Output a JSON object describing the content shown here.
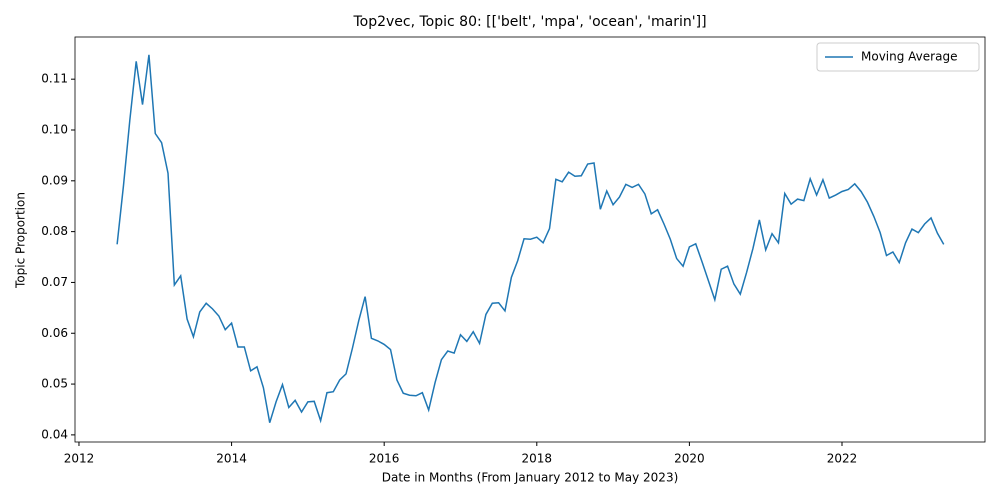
{
  "chart_data": {
    "type": "line",
    "title": "Top2vec, Topic 80: [['belt', 'mpa', 'ocean', 'marin']]",
    "xlabel": "Date in Months (From January 2012 to May 2023)",
    "ylabel": "Topic Proportion",
    "x": [
      2012.5,
      2012.583,
      2012.667,
      2012.75,
      2012.833,
      2012.917,
      2013,
      2013.083,
      2013.167,
      2013.25,
      2013.333,
      2013.417,
      2013.5,
      2013.583,
      2013.667,
      2013.75,
      2013.833,
      2013.917,
      2014,
      2014.083,
      2014.167,
      2014.25,
      2014.333,
      2014.417,
      2014.5,
      2014.583,
      2014.667,
      2014.75,
      2014.833,
      2014.917,
      2015,
      2015.083,
      2015.167,
      2015.25,
      2015.333,
      2015.417,
      2015.5,
      2015.583,
      2015.667,
      2015.75,
      2015.833,
      2015.917,
      2016,
      2016.083,
      2016.167,
      2016.25,
      2016.333,
      2016.417,
      2016.5,
      2016.583,
      2016.667,
      2016.75,
      2016.833,
      2016.917,
      2017,
      2017.083,
      2017.167,
      2017.25,
      2017.333,
      2017.417,
      2017.5,
      2017.583,
      2017.667,
      2017.75,
      2017.833,
      2017.917,
      2018,
      2018.083,
      2018.167,
      2018.25,
      2018.333,
      2018.417,
      2018.5,
      2018.583,
      2018.667,
      2018.75,
      2018.833,
      2018.917,
      2019,
      2019.083,
      2019.167,
      2019.25,
      2019.333,
      2019.417,
      2019.5,
      2019.583,
      2019.667,
      2019.75,
      2019.833,
      2019.917,
      2020,
      2020.083,
      2020.167,
      2020.25,
      2020.333,
      2020.417,
      2020.5,
      2020.583,
      2020.667,
      2020.75,
      2020.833,
      2020.917,
      2021,
      2021.083,
      2021.167,
      2021.25,
      2021.333,
      2021.417,
      2021.5,
      2021.583,
      2021.667,
      2021.75,
      2021.833,
      2021.917,
      2022,
      2022.083,
      2022.167,
      2022.25,
      2022.333,
      2022.417,
      2022.5,
      2022.583,
      2022.667,
      2022.75,
      2022.833,
      2022.917,
      2023,
      2023.083,
      2023.167,
      2023.25,
      2023.333
    ],
    "series": [
      {
        "name": "Moving Average",
        "color": "#1f77b4",
        "values": [
          0.0775,
          0.089,
          0.102,
          0.1135,
          0.105,
          0.1148,
          0.0993,
          0.0975,
          0.0915,
          0.0695,
          0.0713,
          0.0628,
          0.0593,
          0.0642,
          0.0659,
          0.0648,
          0.0634,
          0.0607,
          0.062,
          0.0573,
          0.0573,
          0.0526,
          0.0534,
          0.0493,
          0.0424,
          0.0465,
          0.0499,
          0.0454,
          0.0468,
          0.0445,
          0.0465,
          0.0466,
          0.0428,
          0.0483,
          0.0485,
          0.0508,
          0.052,
          0.057,
          0.0625,
          0.0672,
          0.059,
          0.0585,
          0.0578,
          0.0568,
          0.0508,
          0.0482,
          0.0478,
          0.0477,
          0.0483,
          0.0449,
          0.0503,
          0.0548,
          0.0565,
          0.0561,
          0.0597,
          0.0584,
          0.0603,
          0.058,
          0.0637,
          0.0659,
          0.066,
          0.0644,
          0.071,
          0.0743,
          0.0786,
          0.0785,
          0.0789,
          0.0778,
          0.0806,
          0.0903,
          0.0898,
          0.0917,
          0.0909,
          0.091,
          0.0933,
          0.0935,
          0.0844,
          0.088,
          0.0853,
          0.0868,
          0.0893,
          0.0887,
          0.0893,
          0.0874,
          0.0835,
          0.0843,
          0.0815,
          0.0785,
          0.0747,
          0.0732,
          0.077,
          0.0776,
          0.074,
          0.0703,
          0.0666,
          0.0726,
          0.0732,
          0.0697,
          0.0677,
          0.072,
          0.0767,
          0.0823,
          0.0764,
          0.0796,
          0.0778,
          0.0875,
          0.0854,
          0.0864,
          0.0861,
          0.0904,
          0.0872,
          0.0902,
          0.0866,
          0.0872,
          0.0879,
          0.0883,
          0.0894,
          0.0879,
          0.0858,
          0.083,
          0.0798,
          0.0753,
          0.076,
          0.0739,
          0.0778,
          0.0805,
          0.0798,
          0.0815,
          0.0827,
          0.0797,
          0.0775
        ]
      }
    ],
    "xlim": [
      2011.948,
      2023.874
    ],
    "xticks": [
      2012,
      2014,
      2016,
      2018,
      2020,
      2022
    ],
    "ylim": [
      0.0386,
      0.1183
    ],
    "yticks": [
      0.04,
      0.05,
      0.06,
      0.07,
      0.08,
      0.09,
      {
        "value": 0.1,
        "label": "0.10"
      },
      0.11
    ],
    "grid": false,
    "legend": "upper right"
  }
}
